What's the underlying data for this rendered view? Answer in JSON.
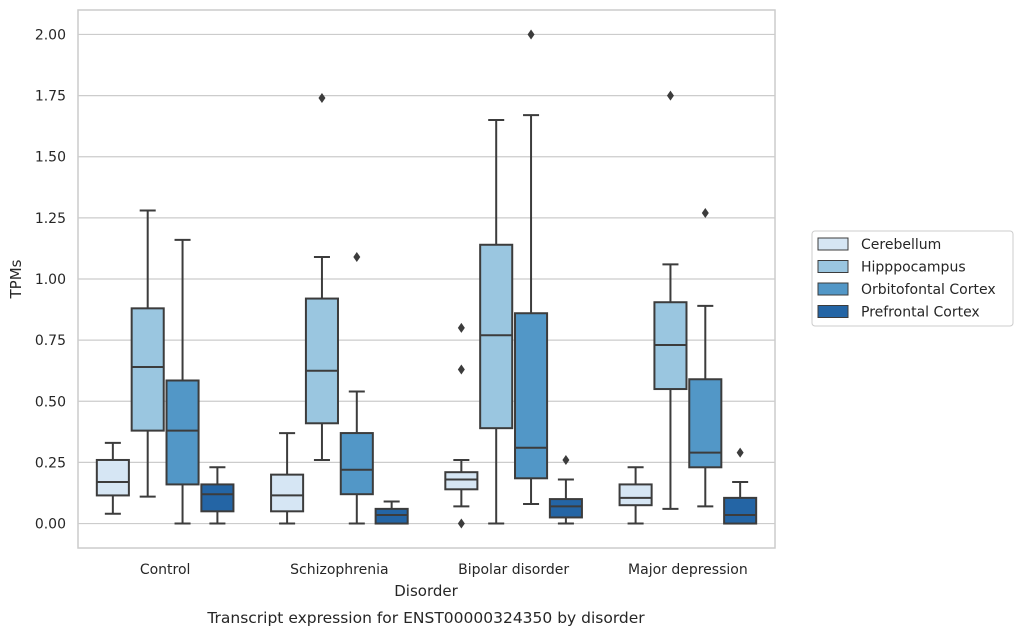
{
  "chart_data": {
    "type": "box",
    "xlabel": "Disorder",
    "ylabel": "TPMs",
    "caption": "Transcript expression for ENST00000324350 by disorder",
    "ylim": [
      -0.1,
      2.1
    ],
    "yticks": [
      "0.00",
      "0.25",
      "0.50",
      "0.75",
      "1.00",
      "1.25",
      "1.50",
      "1.75",
      "2.00"
    ],
    "grid": "horizontal",
    "legend_position": "right",
    "categories": [
      "Control",
      "Schizophrenia",
      "Bipolar disorder",
      "Major depression"
    ],
    "series": [
      {
        "name": "Cerebellum",
        "color": "#d6e6f4",
        "boxes": [
          {
            "whislo": 0.04,
            "q1": 0.115,
            "med": 0.17,
            "q3": 0.26,
            "whishi": 0.33,
            "fliers": []
          },
          {
            "whislo": 0.0,
            "q1": 0.05,
            "med": 0.115,
            "q3": 0.2,
            "whishi": 0.37,
            "fliers": []
          },
          {
            "whislo": 0.07,
            "q1": 0.14,
            "med": 0.18,
            "q3": 0.21,
            "whishi": 0.26,
            "fliers": [
              0.0,
              0.63,
              0.8
            ]
          },
          {
            "whislo": 0.0,
            "q1": 0.075,
            "med": 0.105,
            "q3": 0.16,
            "whishi": 0.23,
            "fliers": []
          }
        ]
      },
      {
        "name": "Hipppocampus",
        "color": "#9ac6e0",
        "boxes": [
          {
            "whislo": 0.11,
            "q1": 0.38,
            "med": 0.64,
            "q3": 0.88,
            "whishi": 1.28,
            "fliers": []
          },
          {
            "whislo": 0.26,
            "q1": 0.41,
            "med": 0.625,
            "q3": 0.92,
            "whishi": 1.09,
            "fliers": [
              1.74
            ]
          },
          {
            "whislo": 0.0,
            "q1": 0.39,
            "med": 0.77,
            "q3": 1.14,
            "whishi": 1.65,
            "fliers": []
          },
          {
            "whislo": 0.06,
            "q1": 0.55,
            "med": 0.73,
            "q3": 0.905,
            "whishi": 1.06,
            "fliers": [
              1.75
            ]
          }
        ]
      },
      {
        "name": "Orbitofontal Cortex",
        "color": "#5297c7",
        "boxes": [
          {
            "whislo": 0.0,
            "q1": 0.16,
            "med": 0.38,
            "q3": 0.585,
            "whishi": 1.16,
            "fliers": []
          },
          {
            "whislo": 0.0,
            "q1": 0.12,
            "med": 0.22,
            "q3": 0.37,
            "whishi": 0.54,
            "fliers": [
              1.09
            ]
          },
          {
            "whislo": 0.08,
            "q1": 0.185,
            "med": 0.31,
            "q3": 0.86,
            "whishi": 1.67,
            "fliers": [
              2.0
            ]
          },
          {
            "whislo": 0.07,
            "q1": 0.23,
            "med": 0.29,
            "q3": 0.59,
            "whishi": 0.89,
            "fliers": [
              1.27
            ]
          }
        ]
      },
      {
        "name": "Prefrontal Cortex",
        "color": "#2465a5",
        "boxes": [
          {
            "whislo": 0.0,
            "q1": 0.05,
            "med": 0.12,
            "q3": 0.16,
            "whishi": 0.23,
            "fliers": []
          },
          {
            "whislo": 0.0,
            "q1": 0.0,
            "med": 0.035,
            "q3": 0.06,
            "whishi": 0.09,
            "fliers": []
          },
          {
            "whislo": 0.0,
            "q1": 0.025,
            "med": 0.07,
            "q3": 0.1,
            "whishi": 0.18,
            "fliers": [
              0.26
            ]
          },
          {
            "whislo": 0.0,
            "q1": 0.0,
            "med": 0.035,
            "q3": 0.105,
            "whishi": 0.17,
            "fliers": [
              0.29
            ]
          }
        ]
      }
    ]
  }
}
